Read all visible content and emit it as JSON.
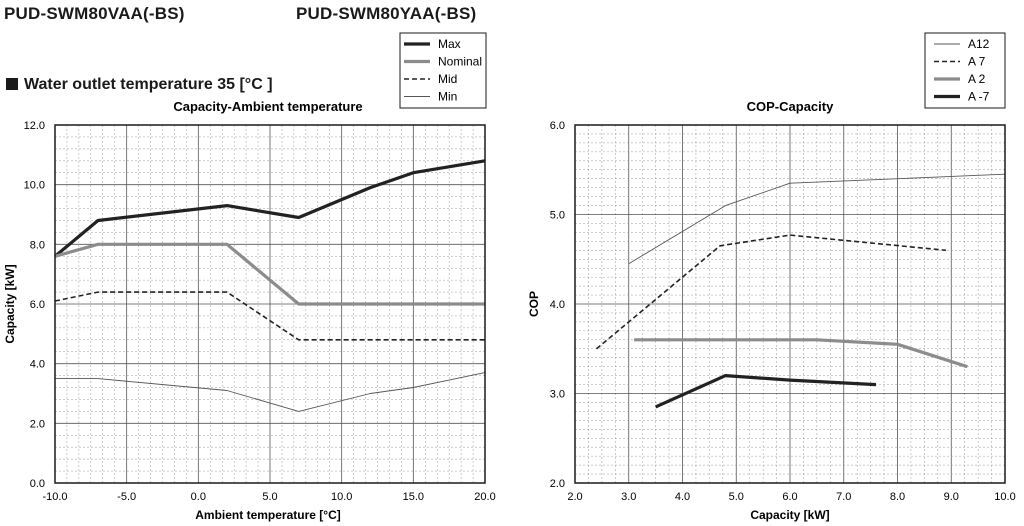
{
  "header": {
    "model_a": "PUD-SWM80VAA(-BS)",
    "model_b": "PUD-SWM80YAA(-BS)",
    "subtitle": "Water outlet temperature 35 [°C ]"
  },
  "chart_data": [
    {
      "type": "line",
      "title": "Capacity-Ambient temperature",
      "xlabel": "Ambient temperature [°C]",
      "ylabel": "Capacity [kW]",
      "xlim": [
        -10,
        20
      ],
      "ylim": [
        0,
        12
      ],
      "xticks": [
        "-10.0",
        "-5.0",
        "0.0",
        "5.0",
        "10.0",
        "15.0",
        "20.0"
      ],
      "yticks": [
        "0.0",
        "2.0",
        "4.0",
        "6.0",
        "8.0",
        "10.0",
        "12.0"
      ],
      "legend_position": "top-center",
      "series": [
        {
          "name": "Max",
          "style": "thick-dark",
          "x": [
            -10,
            -7,
            2,
            7,
            12,
            15,
            20
          ],
          "y": [
            7.6,
            8.8,
            9.3,
            8.9,
            9.9,
            10.4,
            10.8
          ]
        },
        {
          "name": "Nominal",
          "style": "thick-gray",
          "x": [
            -10,
            -7,
            2,
            7,
            20
          ],
          "y": [
            7.6,
            8.0,
            8.0,
            6.0,
            6.0
          ]
        },
        {
          "name": "Mid",
          "style": "dashed",
          "x": [
            -10,
            -7,
            2,
            7,
            20
          ],
          "y": [
            6.1,
            6.4,
            6.4,
            4.8,
            4.8
          ]
        },
        {
          "name": "Min",
          "style": "thin",
          "x": [
            -10,
            -7,
            2,
            7,
            12,
            15,
            20
          ],
          "y": [
            3.5,
            3.5,
            3.1,
            2.4,
            3.0,
            3.2,
            3.7
          ]
        }
      ]
    },
    {
      "type": "line",
      "title": "COP-Capacity",
      "xlabel": "Capacity [kW]",
      "ylabel": "COP",
      "xlim": [
        2,
        10
      ],
      "ylim": [
        2,
        6
      ],
      "xticks": [
        "2.0",
        "3.0",
        "4.0",
        "5.0",
        "6.0",
        "7.0",
        "8.0",
        "9.0",
        "10.0"
      ],
      "yticks": [
        "2.0",
        "3.0",
        "4.0",
        "5.0",
        "6.0"
      ],
      "legend_position": "top-right",
      "series": [
        {
          "name": "A12",
          "style": "thin",
          "x": [
            3.0,
            4.8,
            6.0,
            10.0
          ],
          "y": [
            4.45,
            5.1,
            5.35,
            5.45
          ]
        },
        {
          "name": "A  7",
          "style": "dashed",
          "x": [
            2.4,
            4.7,
            6.0,
            8.9
          ],
          "y": [
            3.5,
            4.65,
            4.77,
            4.6
          ]
        },
        {
          "name": "A  2",
          "style": "thick-gray",
          "x": [
            3.1,
            4.8,
            6.5,
            8.0,
            9.3
          ],
          "y": [
            3.6,
            3.6,
            3.6,
            3.55,
            3.3
          ]
        },
        {
          "name": "A -7",
          "style": "thick-dark",
          "x": [
            3.5,
            4.8,
            6.0,
            7.6
          ],
          "y": [
            2.85,
            3.2,
            3.15,
            3.1
          ]
        }
      ]
    }
  ]
}
